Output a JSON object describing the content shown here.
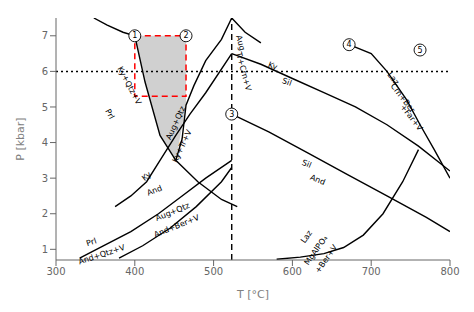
{
  "chart_data": {
    "type": "line",
    "x_label": "T [°C]",
    "y_label": "P [kbar]",
    "xlim": [
      300,
      800
    ],
    "ylim": [
      0.7,
      7.5
    ],
    "xticks": [
      300,
      400,
      500,
      600,
      700,
      800
    ],
    "yticks": [
      1,
      2,
      3,
      4,
      5,
      6,
      7
    ],
    "grid": false,
    "reference_lines": [
      {
        "y": 6.0,
        "color": "#000000",
        "line_style": "dotted"
      }
    ],
    "area": {
      "x": [
        400,
        413,
        432,
        452,
        465
      ],
      "low": [
        7.0,
        5.7,
        4.2,
        3.5,
        5.05
      ],
      "high": [
        7.0,
        7.0,
        7.0,
        7.0,
        7.0
      ],
      "color": "#c0c0c0"
    },
    "series": [
      {
        "x": [
          348,
          365,
          385,
          400,
          413,
          432,
          452,
          480,
          510,
          530
        ],
        "values": [
          7.5,
          7.3,
          7.1,
          7.0,
          5.7,
          4.2,
          3.5,
          2.9,
          2.4,
          2.2
        ],
        "color": "#000000",
        "line_style": "solid"
      },
      {
        "x": [
          452,
          460,
          465,
          475,
          490,
          510,
          523
        ],
        "values": [
          3.5,
          4.1,
          5.05,
          5.6,
          6.3,
          6.9,
          7.5
        ],
        "color": "#000000",
        "line_style": "solid"
      },
      {
        "x": [
          523,
          540,
          560
        ],
        "values": [
          7.5,
          7.1,
          6.8
        ],
        "color": "#000000",
        "line_style": "solid"
      },
      {
        "x": [
          375,
          395,
          415,
          432,
          452,
          470,
          490,
          523
        ],
        "values": [
          2.2,
          2.5,
          2.9,
          3.5,
          4.2,
          4.8,
          5.4,
          6.5
        ],
        "color": "#000000",
        "line_style": "solid"
      },
      {
        "x": [
          330,
          360,
          395,
          430,
          460,
          490,
          523
        ],
        "values": [
          0.75,
          1.1,
          1.5,
          2.0,
          2.5,
          3.0,
          3.5
        ],
        "color": "#000000",
        "line_style": "solid"
      },
      {
        "x": [
          380,
          410,
          445,
          478,
          510,
          523
        ],
        "values": [
          0.75,
          1.1,
          1.6,
          2.2,
          2.9,
          3.3
        ],
        "color": "#000000",
        "line_style": "solid"
      },
      {
        "x": [
          523,
          523
        ],
        "values": [
          0.7,
          7.5
        ],
        "color": "#000000",
        "line_style": "dashed"
      },
      {
        "x": [
          523,
          560,
          600,
          640,
          680,
          720,
          760,
          800
        ],
        "values": [
          6.5,
          6.2,
          5.8,
          5.4,
          5.0,
          4.5,
          3.9,
          3.2
        ],
        "color": "#000000",
        "line_style": "solid"
      },
      {
        "x": [
          523,
          570,
          620,
          670,
          720,
          770,
          800
        ],
        "values": [
          4.8,
          4.3,
          3.7,
          3.1,
          2.5,
          1.9,
          1.5
        ],
        "color": "#000000",
        "line_style": "solid"
      },
      {
        "x": [
          580,
          610,
          640,
          665,
          690,
          715,
          740,
          760
        ],
        "values": [
          0.72,
          0.78,
          0.88,
          1.05,
          1.4,
          2.0,
          2.9,
          3.8
        ],
        "color": "#000000",
        "line_style": "solid"
      },
      {
        "x": [
          672,
          700,
          720,
          745,
          762,
          780,
          800
        ],
        "values": [
          6.75,
          6.5,
          6.0,
          5.2,
          4.5,
          3.8,
          3.0
        ],
        "color": "#000000",
        "line_style": "solid"
      }
    ],
    "box": {
      "x0": 400,
      "y0": 5.3,
      "x1": 465,
      "y1": 7.0,
      "color": "#ff0000",
      "line_style": "dashed"
    },
    "points": [
      {
        "x": 400,
        "y": 7.0,
        "label": "1"
      },
      {
        "x": 465,
        "y": 7.0,
        "label": "2"
      },
      {
        "x": 523,
        "y": 4.8,
        "label": "3"
      },
      {
        "x": 672,
        "y": 6.75,
        "label": "4"
      },
      {
        "x": 762,
        "y": 6.6,
        "label": "5"
      }
    ],
    "annotations": [
      {
        "x": 368,
        "y": 4.8,
        "text": "Prl"
      },
      {
        "x": 393,
        "y": 5.6,
        "text": "Ky+Qtz+V"
      },
      {
        "x": 452,
        "y": 4.55,
        "text": "Aug+Qtz"
      },
      {
        "x": 460,
        "y": 3.9,
        "text": "Ky+Tr+V"
      },
      {
        "x": 415,
        "y": 3.05,
        "text": "Ky"
      },
      {
        "x": 425,
        "y": 2.65,
        "text": "And"
      },
      {
        "x": 448,
        "y": 2.05,
        "text": "Aug+Qtz"
      },
      {
        "x": 453,
        "y": 1.65,
        "text": "And+Ber+V"
      },
      {
        "x": 345,
        "y": 1.2,
        "text": "Prl"
      },
      {
        "x": 358,
        "y": 0.85,
        "text": "And+Qtz+V"
      },
      {
        "x": 534,
        "y": 6.8,
        "text": "Aug"
      },
      {
        "x": 538,
        "y": 6.0,
        "text": "Tr+Crn+V"
      },
      {
        "x": 575,
        "y": 6.15,
        "text": "Ky"
      },
      {
        "x": 593,
        "y": 5.7,
        "text": "Sil"
      },
      {
        "x": 618,
        "y": 3.4,
        "text": "Sil"
      },
      {
        "x": 632,
        "y": 2.95,
        "text": "And"
      },
      {
        "x": 618,
        "y": 1.35,
        "text": "Laz"
      },
      {
        "x": 630,
        "y": 0.97,
        "text": "MgAlPO₄"
      },
      {
        "x": 643,
        "y": 0.73,
        "text": "+Ber+V"
      },
      {
        "x": 728,
        "y": 5.8,
        "text": "Laz"
      },
      {
        "x": 740,
        "y": 5.25,
        "text": "Crn+Ber"
      },
      {
        "x": 751,
        "y": 4.7,
        "text": "+Far+V"
      }
    ]
  }
}
